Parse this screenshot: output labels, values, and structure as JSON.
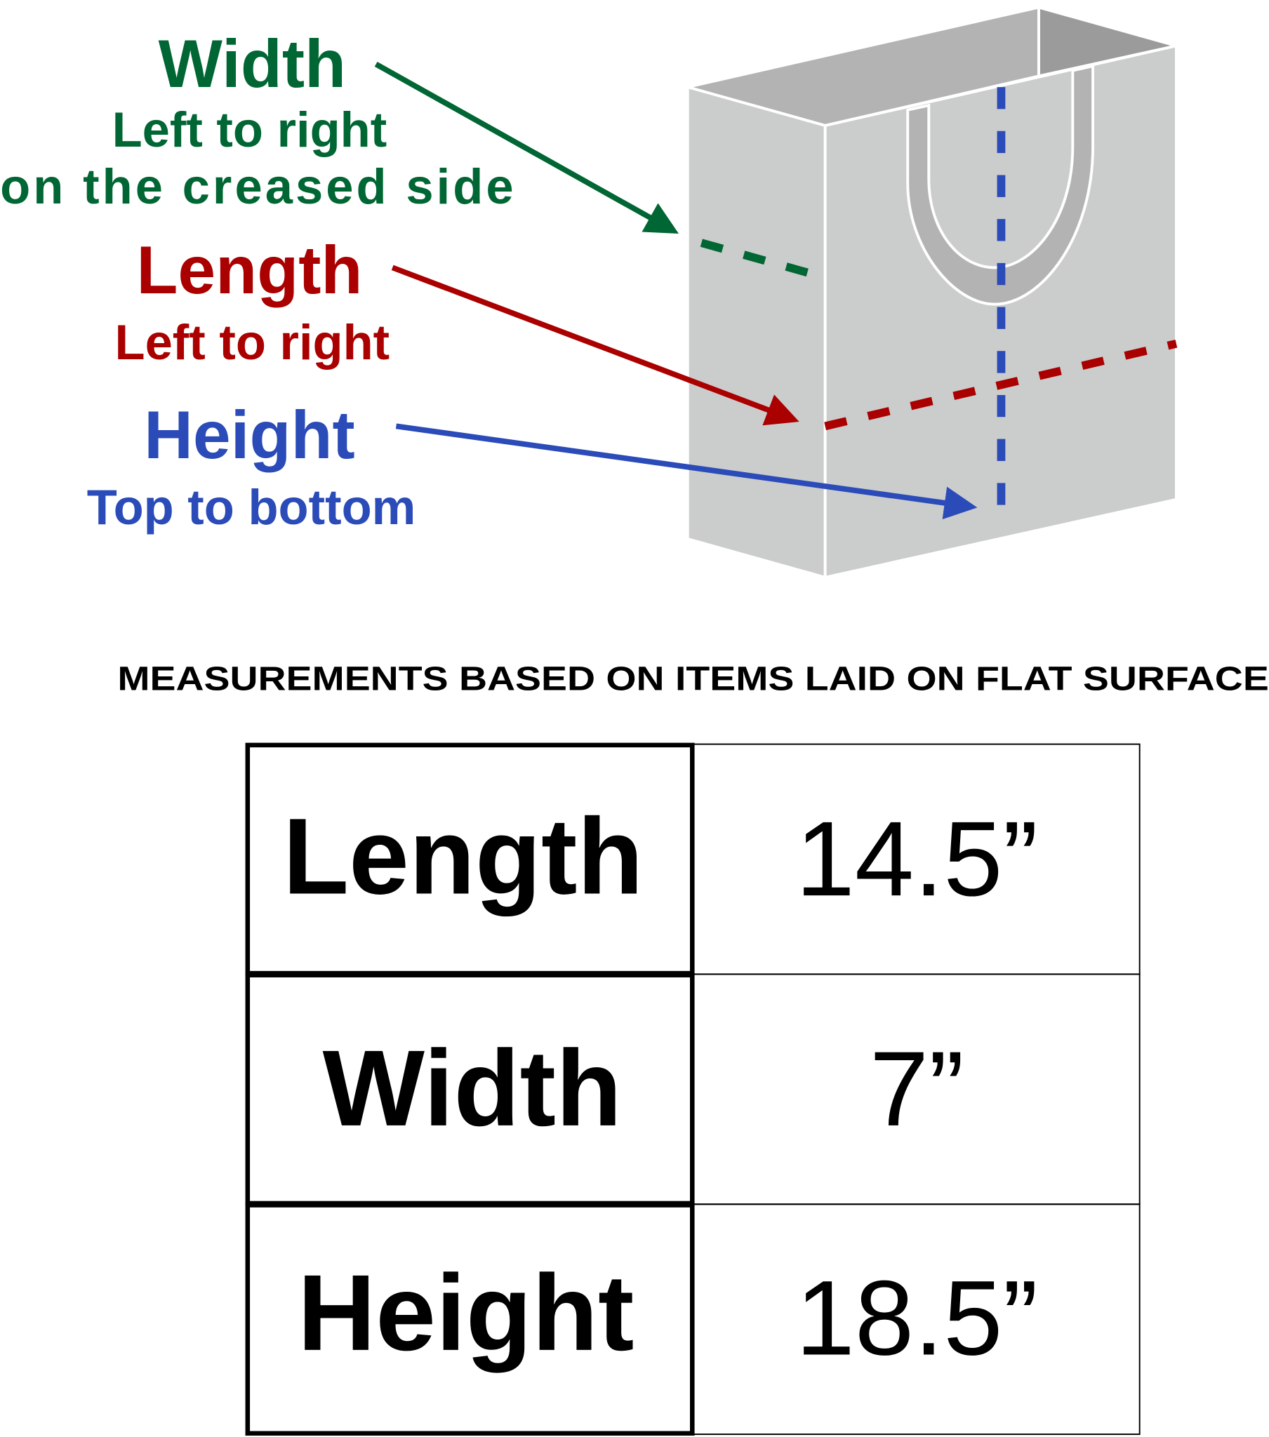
{
  "labels": {
    "width": {
      "title": "Width",
      "line1": "Left to right",
      "line2": "on the creased side"
    },
    "length": {
      "title": "Length",
      "line1": "Left to right"
    },
    "height": {
      "title": "Height",
      "line1": "Top to bottom"
    }
  },
  "colors": {
    "width": "#006633",
    "length": "#aa0000",
    "height": "#2a4bb8",
    "bag_side": "#cbcccc",
    "bag_top": "#b3b3b3",
    "bag_inside": "#9b9b9b"
  },
  "icons": {
    "bag": "shopping-bag-illustration"
  },
  "note": "MEASUREMENTS BASED ON ITEMS LAID ON FLAT SURFACE",
  "table": {
    "rows": [
      {
        "label": "Length",
        "value": "14.5”"
      },
      {
        "label": "Width",
        "value": "7”"
      },
      {
        "label": "Height",
        "value": "18.5”"
      }
    ]
  }
}
